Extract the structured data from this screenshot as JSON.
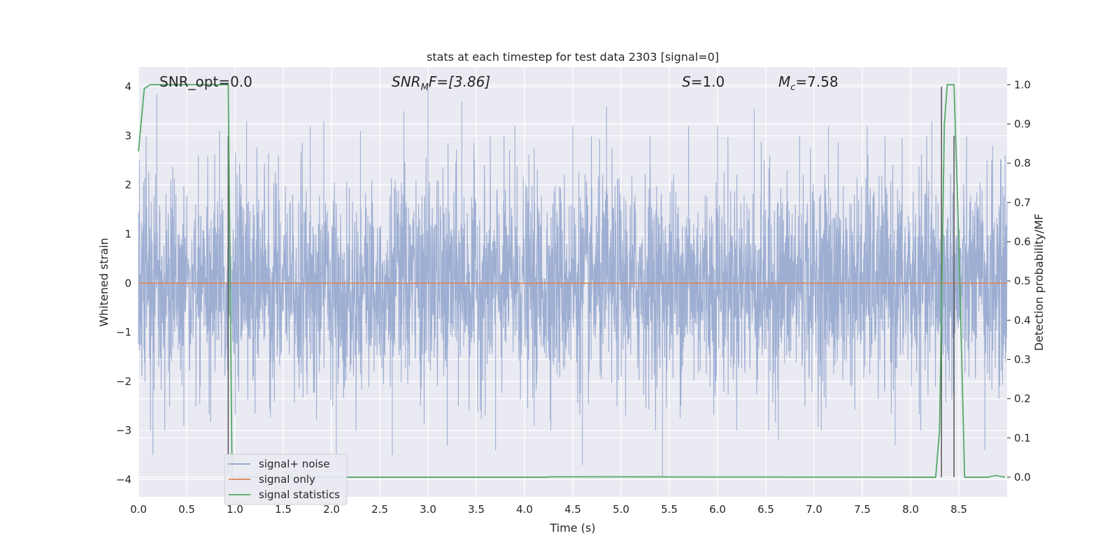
{
  "chart_data": {
    "type": "line",
    "title": "stats at each timestep for test data 2303 [signal=0]",
    "xlabel": "Time (s)",
    "ylabel": "Whitened strain",
    "ylabel_right": "Detection probability/MF",
    "xlim": [
      0.0,
      9.0
    ],
    "ylim": [
      -4.35,
      4.4
    ],
    "ylim_right": [
      -0.05,
      1.045
    ],
    "x_ticks": [
      "0.0",
      "0.5",
      "1.0",
      "1.5",
      "2.0",
      "2.5",
      "3.0",
      "3.5",
      "4.0",
      "4.5",
      "5.0",
      "5.5",
      "6.0",
      "6.5",
      "7.0",
      "7.5",
      "8.0",
      "8.5"
    ],
    "y_ticks": [
      "−4",
      "−3",
      "−2",
      "−1",
      "0",
      "1",
      "2",
      "3",
      "4"
    ],
    "y_ticks_right": [
      "0.0",
      "0.1",
      "0.2",
      "0.3",
      "0.4",
      "0.5",
      "0.6",
      "0.7",
      "0.8",
      "0.9",
      "1.0"
    ],
    "grid": true,
    "legend_position": "lower-left",
    "annotations": {
      "snr_opt": "SNR_opt=0.0",
      "snr_mf_base": "SNR",
      "snr_mf_sub": "M",
      "snr_mf_rest": "F=[3.86]",
      "s_var": "S",
      "s_rest": "=1.0",
      "mc_var": "M",
      "mc_sub": "c",
      "mc_rest": "=7.58"
    },
    "series": [
      {
        "name": "signal+ noise",
        "color": "#8fa3cc",
        "axis": "left",
        "description_level": "whitened strain noise, approx amplitude ±4",
        "peaks": [
          [
            0.01,
            2.5
          ],
          [
            0.15,
            -3.5
          ],
          [
            0.19,
            3.85
          ],
          [
            0.31,
            -1.8
          ],
          [
            0.47,
            -2.9
          ],
          [
            0.62,
            2.6
          ],
          [
            0.84,
            3.1
          ],
          [
            1.03,
            -1.9
          ],
          [
            1.12,
            3.3
          ],
          [
            1.45,
            2.6
          ],
          [
            1.78,
            3.2
          ],
          [
            1.92,
            3.3
          ],
          [
            2.05,
            -3.5
          ],
          [
            2.3,
            3.1
          ],
          [
            2.63,
            -3.5
          ],
          [
            2.75,
            3.5
          ],
          [
            3.0,
            4.0
          ],
          [
            3.2,
            -3.3
          ],
          [
            3.35,
            3.7
          ],
          [
            3.7,
            -3.4
          ],
          [
            3.9,
            3.2
          ],
          [
            4.1,
            -2.9
          ],
          [
            4.5,
            3.2
          ],
          [
            4.6,
            -3.7
          ],
          [
            4.85,
            3.6
          ],
          [
            5.3,
            3.0
          ],
          [
            5.43,
            -3.95
          ],
          [
            5.7,
            3.2
          ],
          [
            6.0,
            3.2
          ],
          [
            6.38,
            3.55
          ],
          [
            6.53,
            -3.0
          ],
          [
            6.63,
            -3.2
          ],
          [
            6.85,
            3.0
          ],
          [
            7.15,
            3.2
          ],
          [
            7.55,
            3.2
          ],
          [
            7.84,
            -3.3
          ],
          [
            8.22,
            3.3
          ],
          [
            8.4,
            -2.0
          ],
          [
            8.77,
            -3.4
          ],
          [
            8.85,
            2.8
          ],
          [
            8.98,
            2.6
          ]
        ]
      },
      {
        "name": "signal only",
        "color": "#dd8452",
        "axis": "left",
        "x": [
          0.0,
          9.0
        ],
        "y": [
          0.0,
          0.0
        ]
      },
      {
        "name": "signal statistics",
        "color": "#55a868",
        "axis": "right",
        "x": [
          0.0,
          0.06,
          0.12,
          0.2,
          0.5,
          0.8,
          0.92,
          0.93,
          0.95,
          0.97,
          1.0,
          4.2,
          4.3,
          8.2,
          8.26,
          8.3,
          8.35,
          8.38,
          8.45,
          8.5,
          8.56,
          8.8,
          8.88,
          8.98
        ],
        "y": [
          0.83,
          0.99,
          1.0,
          1.0,
          1.0,
          1.0,
          1.0,
          1.0,
          0.5,
          0.0,
          0.0,
          0.0,
          0.001,
          0.0,
          0.0,
          0.12,
          0.9,
          1.0,
          1.0,
          0.6,
          0.0,
          0.0,
          0.004,
          0.0
        ]
      }
    ],
    "vertical_markers": [
      {
        "x": 0.93,
        "y_top": 3.0,
        "y_bottom": -3.9,
        "color": "#555555"
      },
      {
        "x": 8.32,
        "y_top": 4.0,
        "y_bottom": -3.95,
        "color": "#555555"
      },
      {
        "x": 8.45,
        "y_top": 3.0,
        "y_bottom": -3.95,
        "color": "#555555"
      }
    ]
  }
}
